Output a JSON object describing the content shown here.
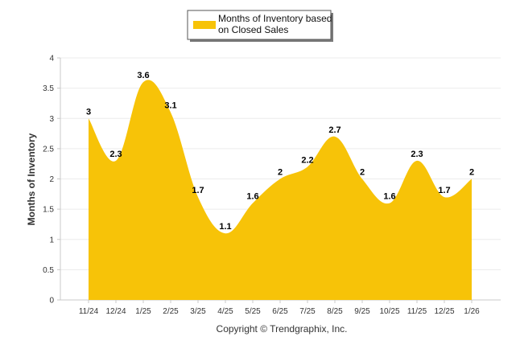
{
  "chart_data": {
    "type": "area",
    "legend": [
      "Months of Inventory based",
      "on Closed Sales"
    ],
    "ylabel": "Months of Inventory",
    "xlabel": "",
    "ylim": [
      0,
      4
    ],
    "yticks": [
      "0",
      "0.5",
      "1",
      "1.5",
      "2",
      "2.5",
      "3",
      "3.5",
      "4"
    ],
    "ytick_values": [
      0,
      0.5,
      1,
      1.5,
      2,
      2.5,
      3,
      3.5,
      4
    ],
    "categories": [
      "11/24",
      "12/24",
      "1/25",
      "2/25",
      "3/25",
      "4/25",
      "5/25",
      "6/25",
      "7/25",
      "8/25",
      "9/25",
      "10/25",
      "11/25",
      "12/25",
      "1/26"
    ],
    "values": [
      3,
      2.3,
      3.6,
      3.1,
      1.7,
      1.1,
      1.6,
      2,
      2.2,
      2.7,
      2,
      1.6,
      2.3,
      1.7,
      2
    ],
    "labels": [
      "3",
      "2.3",
      "3.6",
      "3.1",
      "1.7",
      "1.1",
      "1.6",
      "2",
      "2.2",
      "2.7",
      "2",
      "1.6",
      "2.3",
      "1.7",
      "2"
    ],
    "series_color": "#F7C308",
    "grid": true
  },
  "footer": "Copyright © Trendgraphix, Inc."
}
